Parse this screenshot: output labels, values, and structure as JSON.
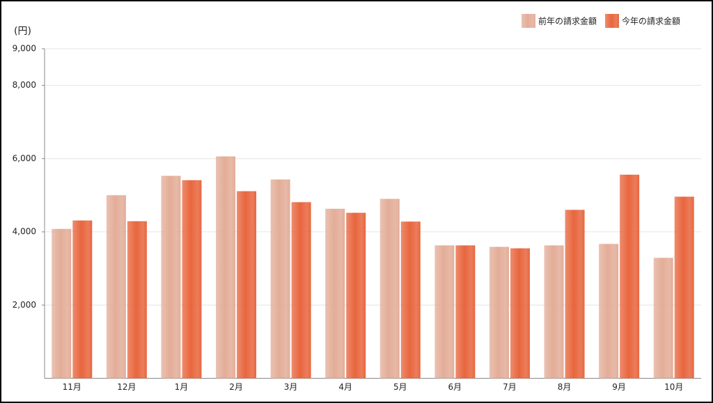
{
  "chart_data": {
    "type": "bar",
    "y_unit_label": "(円)",
    "categories": [
      "11月",
      "12月",
      "1月",
      "2月",
      "3月",
      "4月",
      "5月",
      "6月",
      "7月",
      "8月",
      "9月",
      "10月"
    ],
    "series": [
      {
        "name": "前年の請求金額",
        "color": "#e3ad98",
        "values": [
          4080,
          5000,
          5530,
          6060,
          5430,
          4630,
          4900,
          3630,
          3590,
          3630,
          3670,
          3290
        ]
      },
      {
        "name": "今年の請求金額",
        "color": "#e8663e",
        "values": [
          4310,
          4290,
          5410,
          5110,
          4810,
          4520,
          4280,
          3630,
          3550,
          4600,
          5560,
          4960
        ]
      }
    ],
    "ylim": [
      0,
      9000
    ],
    "yticks": [
      {
        "value": 2000,
        "label": "2,000"
      },
      {
        "value": 4000,
        "label": "4,000"
      },
      {
        "value": 6000,
        "label": "6,000"
      },
      {
        "value": 8000,
        "label": "8,000"
      },
      {
        "value": 9000,
        "label": "9,000"
      }
    ],
    "grid": true,
    "legend": "top-right"
  }
}
